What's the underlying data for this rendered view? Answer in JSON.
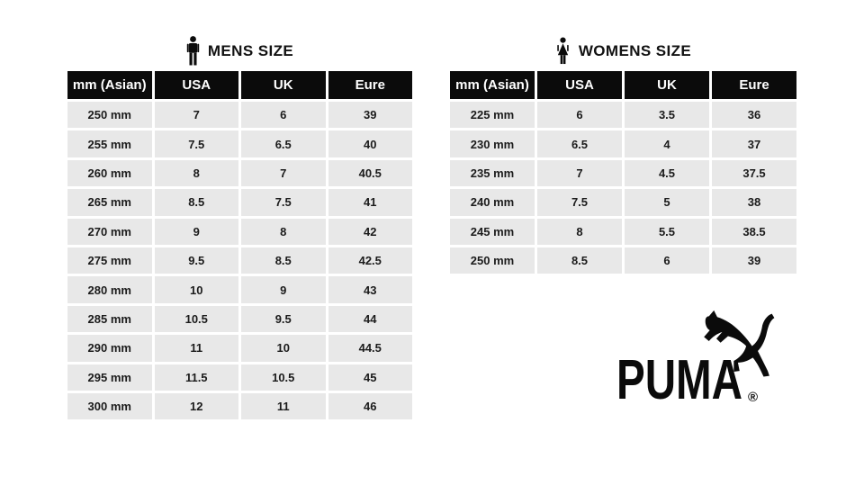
{
  "chart_data": [
    {
      "type": "table",
      "title": "MENS SIZE",
      "icon": "man-icon",
      "columns": [
        "mm (Asian)",
        "USA",
        "UK",
        "Eure"
      ],
      "rows": [
        [
          "250 mm",
          "7",
          "6",
          "39"
        ],
        [
          "255 mm",
          "7.5",
          "6.5",
          "40"
        ],
        [
          "260 mm",
          "8",
          "7",
          "40.5"
        ],
        [
          "265 mm",
          "8.5",
          "7.5",
          "41"
        ],
        [
          "270 mm",
          "9",
          "8",
          "42"
        ],
        [
          "275 mm",
          "9.5",
          "8.5",
          "42.5"
        ],
        [
          "280 mm",
          "10",
          "9",
          "43"
        ],
        [
          "285 mm",
          "10.5",
          "9.5",
          "44"
        ],
        [
          "290 mm",
          "11",
          "10",
          "44.5"
        ],
        [
          "295 mm",
          "11.5",
          "10.5",
          "45"
        ],
        [
          "300 mm",
          "12",
          "11",
          "46"
        ]
      ]
    },
    {
      "type": "table",
      "title": "WOMENS SIZE",
      "icon": "woman-icon",
      "columns": [
        "mm (Asian)",
        "USA",
        "UK",
        "Eure"
      ],
      "rows": [
        [
          "225 mm",
          "6",
          "3.5",
          "36"
        ],
        [
          "230 mm",
          "6.5",
          "4",
          "37"
        ],
        [
          "235 mm",
          "7",
          "4.5",
          "37.5"
        ],
        [
          "240 mm",
          "7.5",
          "5",
          "38"
        ],
        [
          "245 mm",
          "8",
          "5.5",
          "38.5"
        ],
        [
          "250 mm",
          "8.5",
          "6",
          "39"
        ]
      ]
    }
  ],
  "brand": {
    "logo_text": "PUMA",
    "registered_mark": "®",
    "icon": "puma-cat-icon"
  },
  "colors": {
    "header_bg": "#0b0b0b",
    "header_text": "#ffffff",
    "row_bg": "#e8e8e8",
    "separator": "#ffffff",
    "cell_text": "#1b1b1b",
    "title_text": "#121212",
    "background": "#ffffff"
  }
}
